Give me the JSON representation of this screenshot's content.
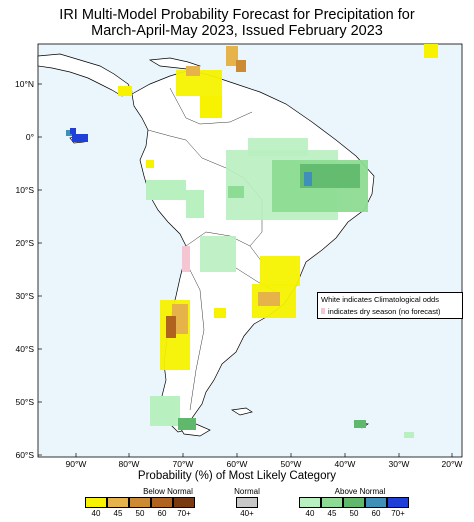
{
  "title_line1": "IRI Multi-Model Probability Forecast for Precipitation for",
  "title_line2": "March-April-May 2023, Issued February 2023",
  "lat_labels": [
    "10°N",
    "0°",
    "10°S",
    "20°S",
    "30°S",
    "40°S",
    "50°S",
    "60°S"
  ],
  "lon_labels": [
    "90°W",
    "80°W",
    "70°W",
    "60°W",
    "50°W",
    "40°W",
    "30°W",
    "20°W"
  ],
  "inset": {
    "line1": "White indicates Climatological odds",
    "line2": "indicates dry season (no forecast)"
  },
  "legend": {
    "title": "Probability (%) of Most Likely Category",
    "below_label": "Below Normal",
    "normal_label": "Normal",
    "above_label": "Above Normal",
    "below_ticks": [
      "40",
      "45",
      "50",
      "60",
      "70+"
    ],
    "normal_ticks": [
      "40+"
    ],
    "above_ticks": [
      "40",
      "45",
      "50",
      "60",
      "70+"
    ],
    "below_colors": [
      "#f6f200",
      "#e6b34a",
      "#cc8a33",
      "#b0631e",
      "#7a3a10"
    ],
    "normal_colors": [
      "#c8c8c8"
    ],
    "above_colors": [
      "#b9f0c0",
      "#8ddb94",
      "#5fb86b",
      "#3f8fb8",
      "#1f3fd8"
    ]
  },
  "colors": {
    "ocean": "#eaf6fc",
    "land": "#ffffff",
    "dry_season": "#f4c6d2"
  }
}
